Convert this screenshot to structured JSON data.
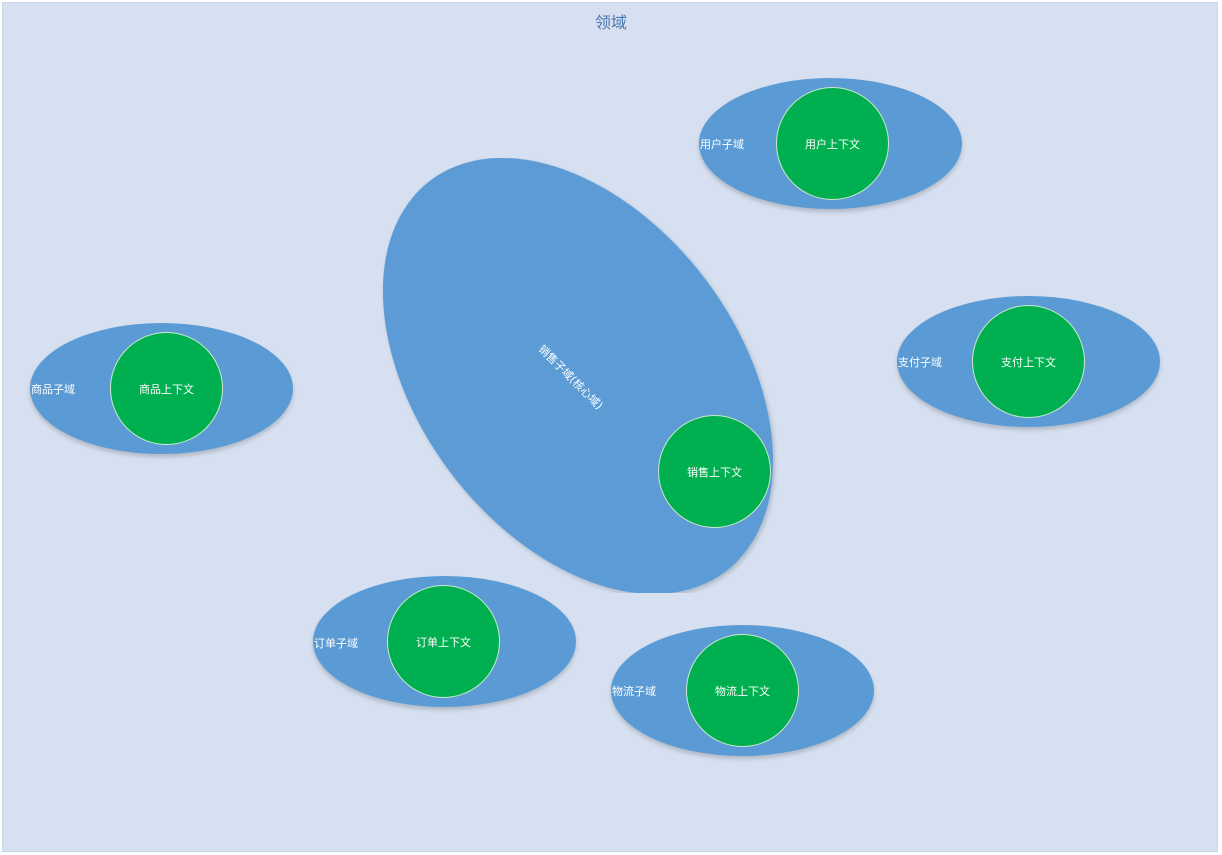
{
  "diagram": {
    "title": "领域",
    "core_domain": {
      "label": "销售子域(核心域)",
      "context": "销售上下文"
    },
    "subdomains": [
      {
        "label": "用户子域",
        "context": "用户上下文"
      },
      {
        "label": "支付子域",
        "context": "支付上下文"
      },
      {
        "label": "商品子域",
        "context": "商品上下文"
      },
      {
        "label": "订单子域",
        "context": "订单上下文"
      },
      {
        "label": "物流子域",
        "context": "物流上下文"
      }
    ]
  },
  "colors": {
    "background": "#d6e0f0",
    "subdomain_fill": "#5b9bd5",
    "context_fill": "#00b050",
    "title_text": "#4a78b0"
  }
}
